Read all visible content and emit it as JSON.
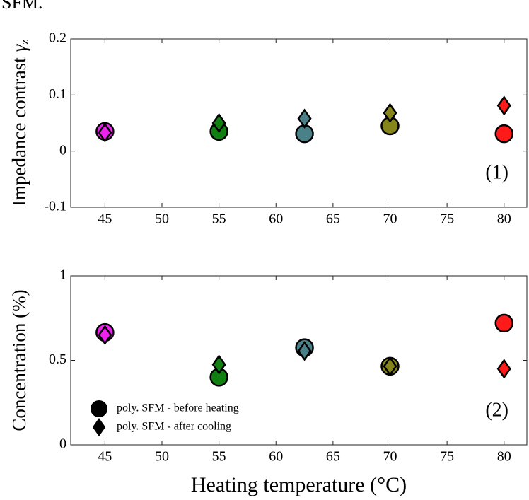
{
  "header": "SFM.",
  "chart_data": [
    {
      "type": "scatter",
      "ylabel": "Impedance contrast",
      "ylabel_symbol": "γ",
      "ylabel_subscript": "z",
      "annotation": "(1)",
      "x": [
        45,
        55,
        62.5,
        70,
        80
      ],
      "xlim": [
        42,
        82
      ],
      "xticks": [
        45,
        50,
        55,
        60,
        65,
        70,
        75,
        80
      ],
      "ylim": [
        -0.1,
        0.2
      ],
      "yticks": [
        -0.1,
        0,
        0.1,
        0.2
      ],
      "colors": [
        "#ee22ee",
        "#108010",
        "#4a8088",
        "#85851a",
        "#ff1a1a"
      ],
      "series": [
        {
          "marker": "circle",
          "values": [
            0.035,
            0.035,
            0.031,
            0.045,
            0.031
          ]
        },
        {
          "marker": "diamond",
          "values": [
            0.033,
            0.05,
            0.058,
            0.068,
            0.081
          ]
        }
      ]
    },
    {
      "type": "scatter",
      "ylabel": "Concentration (%)",
      "xlabel": "Heating temperature (°C)",
      "annotation": "(2)",
      "x": [
        45,
        55,
        62.5,
        70,
        80
      ],
      "xlim": [
        42,
        82
      ],
      "xticks": [
        45,
        50,
        55,
        60,
        65,
        70,
        75,
        80
      ],
      "ylim": [
        0,
        1
      ],
      "yticks": [
        0,
        0.5,
        1
      ],
      "colors": [
        "#ee22ee",
        "#108010",
        "#4a8088",
        "#85851a",
        "#ff1a1a"
      ],
      "legend_color": "#000000",
      "legend": "lower left",
      "series": [
        {
          "name": "poly. SFM - before heating",
          "marker": "circle",
          "values": [
            0.665,
            0.4,
            0.575,
            0.465,
            0.72
          ]
        },
        {
          "name": "poly. SFM - after cooling",
          "marker": "diamond",
          "values": [
            0.65,
            0.475,
            0.555,
            0.465,
            0.45
          ]
        }
      ]
    }
  ]
}
